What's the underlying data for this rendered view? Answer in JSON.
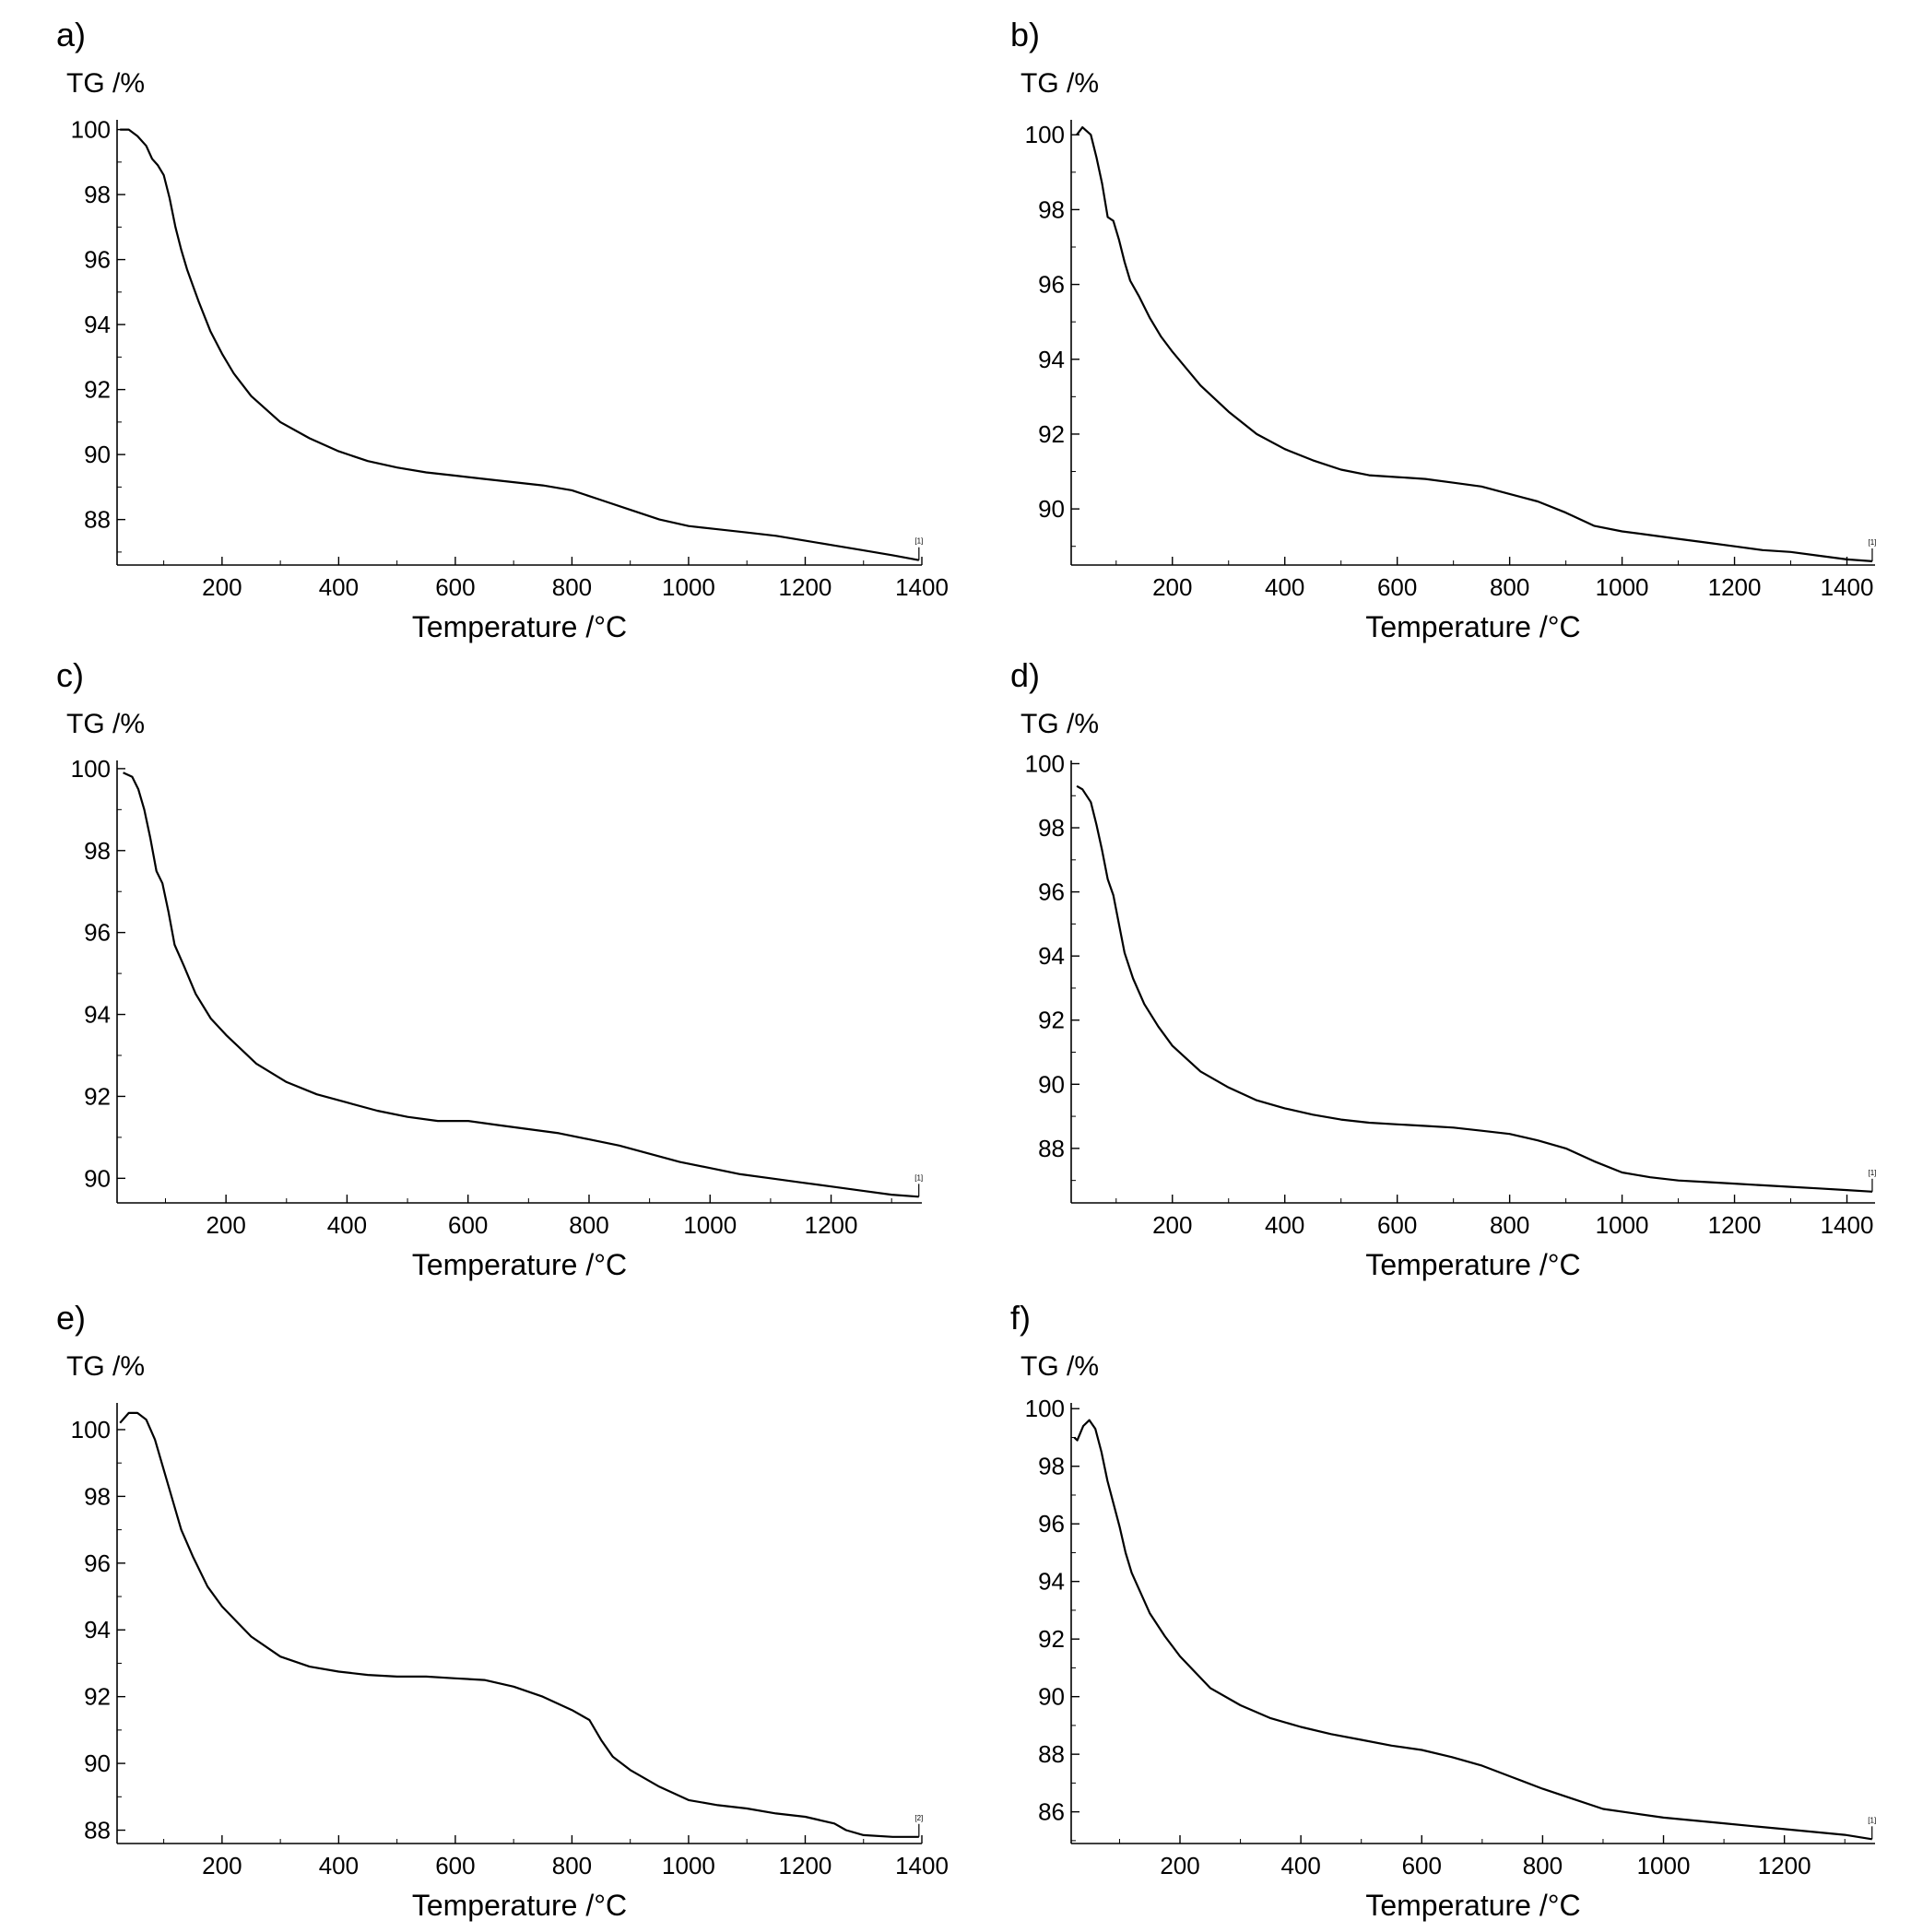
{
  "chart_data": [
    {
      "type": "line",
      "panel_label": "a)",
      "ylabel": "TG /%",
      "xlabel": "Temperature /°C",
      "xlim": [
        20,
        1400
      ],
      "ylim": [
        86.6,
        100.3
      ],
      "xticks": [
        200,
        400,
        600,
        800,
        1000,
        1200,
        1400
      ],
      "yticks": [
        88,
        90,
        92,
        94,
        96,
        98,
        100
      ],
      "marker_label": "[1]",
      "x": [
        25,
        40,
        55,
        70,
        80,
        90,
        100,
        110,
        120,
        130,
        140,
        150,
        160,
        180,
        200,
        220,
        250,
        300,
        350,
        400,
        450,
        500,
        550,
        600,
        650,
        700,
        750,
        800,
        850,
        900,
        950,
        1000,
        1050,
        1100,
        1150,
        1200,
        1250,
        1300,
        1350,
        1395
      ],
      "y": [
        100.0,
        100.0,
        99.8,
        99.5,
        99.1,
        98.9,
        98.6,
        97.9,
        97.0,
        96.3,
        95.7,
        95.2,
        94.7,
        93.8,
        93.1,
        92.5,
        91.8,
        91.0,
        90.5,
        90.1,
        89.8,
        89.6,
        89.45,
        89.35,
        89.25,
        89.15,
        89.05,
        88.9,
        88.6,
        88.3,
        88.0,
        87.8,
        87.7,
        87.6,
        87.5,
        87.35,
        87.2,
        87.05,
        86.9,
        86.75
      ]
    },
    {
      "type": "line",
      "panel_label": "b)",
      "ylabel": "TG /%",
      "xlabel": "Temperature /°C",
      "xlim": [
        20,
        1450
      ],
      "ylim": [
        88.5,
        100.4
      ],
      "xticks": [
        200,
        400,
        600,
        800,
        1000,
        1200,
        1400
      ],
      "yticks": [
        90,
        92,
        94,
        96,
        98,
        100
      ],
      "marker_label": "[1]",
      "x": [
        30,
        40,
        55,
        65,
        75,
        85,
        95,
        105,
        115,
        125,
        140,
        160,
        180,
        200,
        250,
        300,
        350,
        400,
        450,
        500,
        550,
        600,
        650,
        700,
        750,
        800,
        850,
        900,
        950,
        1000,
        1050,
        1100,
        1150,
        1200,
        1250,
        1300,
        1350,
        1400,
        1445
      ],
      "y": [
        100.0,
        100.2,
        100.0,
        99.4,
        98.7,
        97.8,
        97.7,
        97.2,
        96.6,
        96.1,
        95.7,
        95.1,
        94.6,
        94.2,
        93.3,
        92.6,
        92.0,
        91.6,
        91.3,
        91.05,
        90.9,
        90.85,
        90.8,
        90.7,
        90.6,
        90.4,
        90.2,
        89.9,
        89.55,
        89.4,
        89.3,
        89.2,
        89.1,
        89.0,
        88.9,
        88.85,
        88.75,
        88.65,
        88.6
      ]
    },
    {
      "type": "line",
      "panel_label": "c)",
      "ylabel": "TG /%",
      "xlabel": "Temperature /°C",
      "xlim": [
        20,
        1350
      ],
      "ylim": [
        89.4,
        100.2
      ],
      "xticks": [
        200,
        400,
        600,
        800,
        1000,
        1200
      ],
      "yticks": [
        90,
        92,
        94,
        96,
        98,
        100
      ],
      "marker_label": "[1]",
      "x": [
        30,
        45,
        55,
        65,
        75,
        85,
        95,
        105,
        115,
        130,
        150,
        175,
        200,
        250,
        300,
        350,
        400,
        450,
        500,
        550,
        600,
        650,
        700,
        750,
        800,
        850,
        900,
        950,
        1000,
        1050,
        1100,
        1150,
        1200,
        1250,
        1300,
        1345
      ],
      "y": [
        99.9,
        99.8,
        99.5,
        99.0,
        98.3,
        97.5,
        97.2,
        96.5,
        95.7,
        95.2,
        94.5,
        93.9,
        93.5,
        92.8,
        92.35,
        92.05,
        91.85,
        91.65,
        91.5,
        91.4,
        91.4,
        91.3,
        91.2,
        91.1,
        90.95,
        90.8,
        90.6,
        90.4,
        90.25,
        90.1,
        90.0,
        89.9,
        89.8,
        89.7,
        89.6,
        89.55
      ]
    },
    {
      "type": "line",
      "panel_label": "d)",
      "ylabel": "TG /%",
      "xlabel": "Temperature /°C",
      "xlim": [
        20,
        1450
      ],
      "ylim": [
        86.3,
        100.1
      ],
      "xticks": [
        200,
        400,
        600,
        800,
        1000,
        1200,
        1400
      ],
      "yticks": [
        88,
        90,
        92,
        94,
        96,
        98,
        100
      ],
      "marker_label": "[1]",
      "x": [
        30,
        40,
        55,
        65,
        75,
        85,
        95,
        105,
        115,
        130,
        150,
        175,
        200,
        250,
        300,
        350,
        400,
        450,
        500,
        550,
        600,
        650,
        700,
        750,
        800,
        850,
        900,
        950,
        1000,
        1050,
        1100,
        1150,
        1200,
        1250,
        1300,
        1350,
        1400,
        1445
      ],
      "y": [
        99.3,
        99.2,
        98.8,
        98.1,
        97.3,
        96.4,
        95.9,
        95.0,
        94.1,
        93.3,
        92.5,
        91.8,
        91.2,
        90.4,
        89.9,
        89.5,
        89.25,
        89.05,
        88.9,
        88.8,
        88.75,
        88.7,
        88.65,
        88.55,
        88.45,
        88.25,
        88.0,
        87.6,
        87.25,
        87.1,
        87.0,
        86.95,
        86.9,
        86.85,
        86.8,
        86.75,
        86.7,
        86.65
      ]
    },
    {
      "type": "line",
      "panel_label": "e)",
      "ylabel": "TG /%",
      "xlabel": "Temperature /°C",
      "xlim": [
        20,
        1400
      ],
      "ylim": [
        87.6,
        100.8
      ],
      "xticks": [
        200,
        400,
        600,
        800,
        1000,
        1200,
        1400
      ],
      "yticks": [
        88,
        90,
        92,
        94,
        96,
        98,
        100
      ],
      "marker_label": "[2]",
      "x": [
        25,
        40,
        55,
        70,
        85,
        100,
        115,
        130,
        150,
        175,
        200,
        250,
        300,
        350,
        400,
        450,
        500,
        550,
        600,
        650,
        700,
        750,
        800,
        830,
        850,
        870,
        900,
        950,
        1000,
        1050,
        1100,
        1150,
        1200,
        1250,
        1270,
        1300,
        1350,
        1395
      ],
      "y": [
        100.2,
        100.5,
        100.5,
        100.3,
        99.7,
        98.8,
        97.9,
        97.0,
        96.2,
        95.3,
        94.7,
        93.8,
        93.2,
        92.9,
        92.75,
        92.65,
        92.6,
        92.6,
        92.55,
        92.5,
        92.3,
        92.0,
        91.6,
        91.3,
        90.7,
        90.2,
        89.8,
        89.3,
        88.9,
        88.75,
        88.65,
        88.5,
        88.4,
        88.2,
        88.0,
        87.85,
        87.8,
        87.8
      ]
    },
    {
      "type": "line",
      "panel_label": "f)",
      "ylabel": "TG /%",
      "xlabel": "Temperature /°C",
      "xlim": [
        20,
        1350
      ],
      "ylim": [
        84.9,
        100.2
      ],
      "xticks": [
        200,
        400,
        600,
        800,
        1000,
        1200
      ],
      "yticks": [
        86,
        88,
        90,
        92,
        94,
        96,
        98,
        100
      ],
      "marker_label": "[1]",
      "x": [
        25,
        30,
        40,
        50,
        60,
        70,
        80,
        90,
        100,
        110,
        120,
        135,
        150,
        175,
        200,
        250,
        300,
        350,
        400,
        450,
        500,
        550,
        600,
        650,
        700,
        750,
        800,
        850,
        900,
        950,
        1000,
        1050,
        1100,
        1150,
        1200,
        1250,
        1300,
        1345
      ],
      "y": [
        99.0,
        98.9,
        99.4,
        99.6,
        99.3,
        98.5,
        97.5,
        96.7,
        95.9,
        95.0,
        94.3,
        93.6,
        92.9,
        92.1,
        91.4,
        90.3,
        89.7,
        89.25,
        88.95,
        88.7,
        88.5,
        88.3,
        88.15,
        87.9,
        87.6,
        87.2,
        86.8,
        86.45,
        86.1,
        85.95,
        85.8,
        85.7,
        85.6,
        85.5,
        85.4,
        85.3,
        85.2,
        85.05
      ]
    }
  ]
}
